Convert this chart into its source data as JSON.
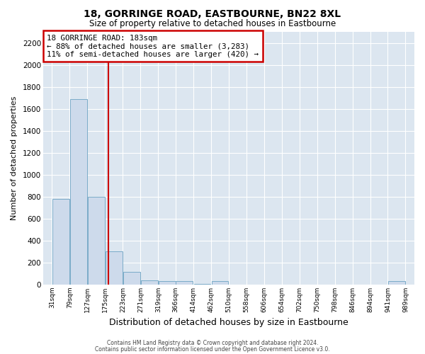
{
  "title": "18, GORRINGE ROAD, EASTBOURNE, BN22 8XL",
  "subtitle": "Size of property relative to detached houses in Eastbourne",
  "xlabel": "Distribution of detached houses by size in Eastbourne",
  "ylabel": "Number of detached properties",
  "bar_color": "#cddaeb",
  "bar_edge_color": "#7aabc8",
  "background_color": "#dce6f0",
  "grid_color": "#ffffff",
  "vline_x": 183,
  "vline_color": "#cc0000",
  "annotation_box_color": "#cc0000",
  "annotation_line1": "18 GORRINGE ROAD: 183sqm",
  "annotation_line2": "← 88% of detached houses are smaller (3,283)",
  "annotation_line3": "11% of semi-detached houses are larger (420) →",
  "bins_left": [
    31,
    79,
    127,
    175,
    223,
    271,
    319,
    366,
    414,
    462,
    510,
    558,
    606,
    654,
    702,
    750,
    798,
    846,
    894,
    941
  ],
  "bin_width": 48,
  "bar_heights": [
    780,
    1690,
    800,
    300,
    115,
    40,
    30,
    30,
    5,
    30,
    0,
    0,
    0,
    0,
    0,
    0,
    0,
    0,
    0,
    30
  ],
  "tick_labels": [
    "31sqm",
    "79sqm",
    "127sqm",
    "175sqm",
    "223sqm",
    "271sqm",
    "319sqm",
    "366sqm",
    "414sqm",
    "462sqm",
    "510sqm",
    "558sqm",
    "606sqm",
    "654sqm",
    "702sqm",
    "750sqm",
    "798sqm",
    "846sqm",
    "894sqm",
    "941sqm",
    "989sqm"
  ],
  "xlim": [
    7,
    1013
  ],
  "ylim": [
    0,
    2300
  ],
  "yticks": [
    0,
    200,
    400,
    600,
    800,
    1000,
    1200,
    1400,
    1600,
    1800,
    2000,
    2200
  ],
  "footer_line1": "Contains HM Land Registry data © Crown copyright and database right 2024.",
  "footer_line2": "Contains public sector information licensed under the Open Government Licence v3.0."
}
